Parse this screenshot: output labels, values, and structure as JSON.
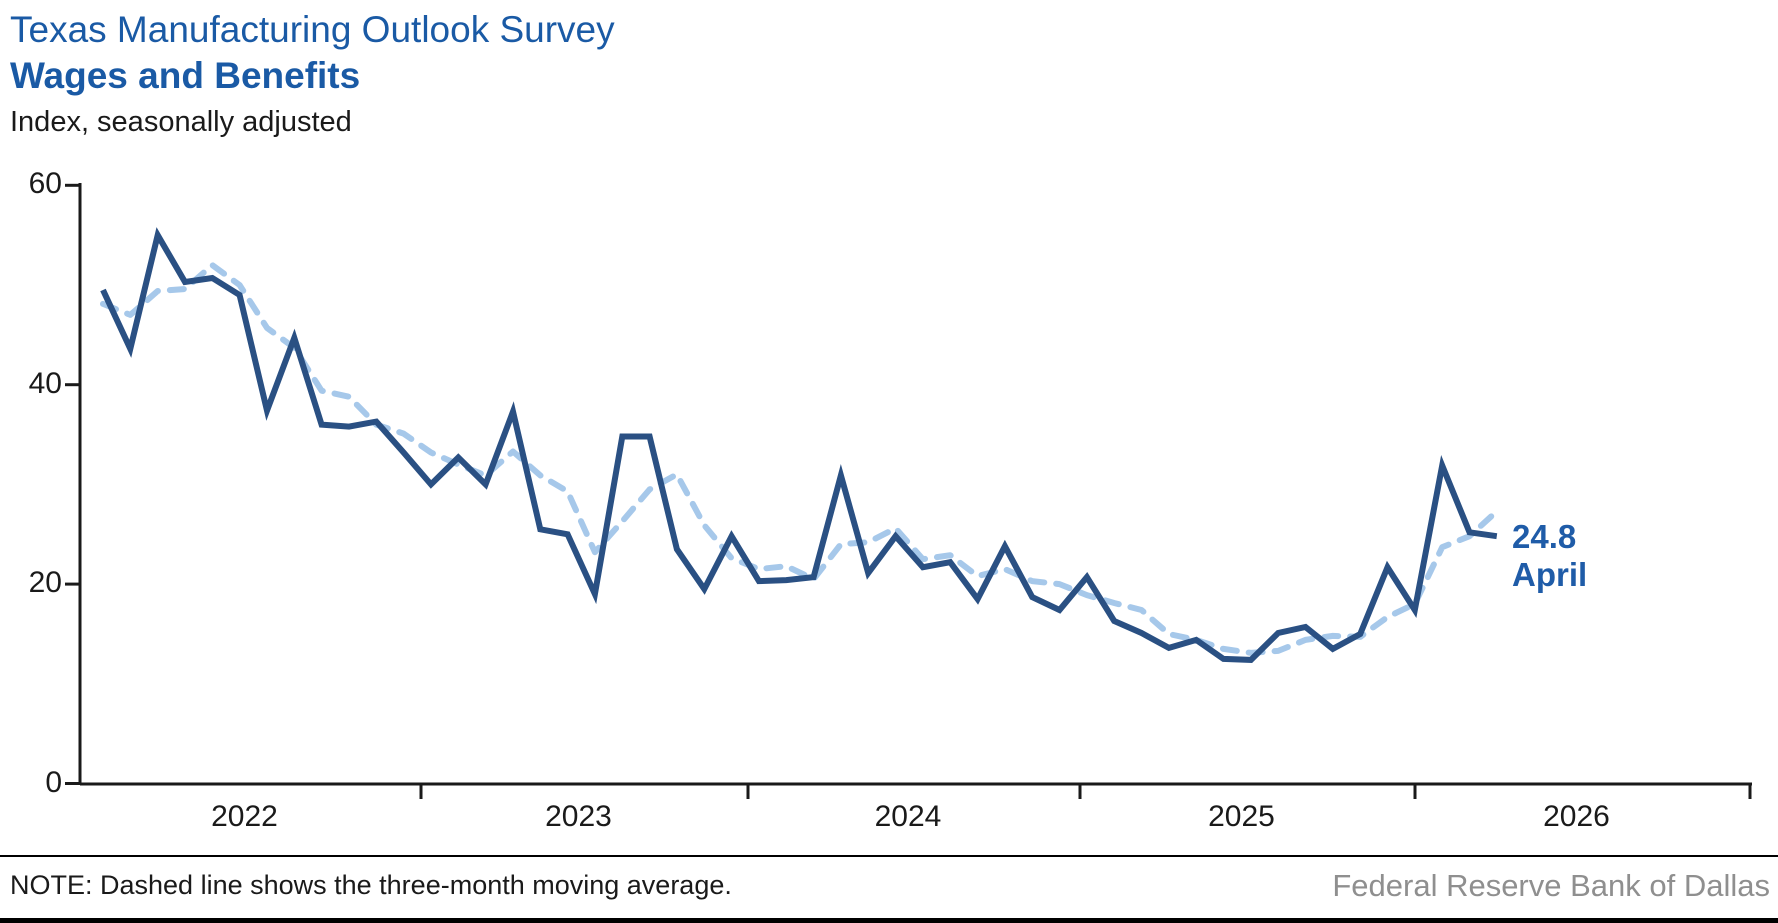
{
  "header": {
    "title": "Texas Manufacturing Outlook Survey",
    "subtitle": "Wages and Benefits",
    "axis_note": "Index, seasonally adjusted"
  },
  "annotation": {
    "value": "24.8",
    "month": "April"
  },
  "footer": {
    "note": "NOTE: Dashed line shows the three-month moving average.",
    "attribution": "Federal Reserve Bank of Dallas"
  },
  "colors": {
    "title_blue": "#1a5aa5",
    "annotation_blue": "#1f5ca8",
    "solid_line": "#2a5083",
    "dashed_line": "#a6c8ea",
    "axis": "#1a1a1a",
    "attribution_gray": "#8f8f8f"
  },
  "chart_data": {
    "type": "line",
    "title": "Texas Manufacturing Outlook Survey — Wages and Benefits",
    "ylabel": "Index, seasonally adjusted",
    "ylim": [
      0,
      60
    ],
    "y_ticks": [
      60,
      40,
      20,
      0
    ],
    "x_tick_labels": [
      "2022",
      "2023",
      "2024",
      "2025",
      "2026"
    ],
    "x_start": "2022-01",
    "x_end": "2026-04",
    "grid": false,
    "legend_position": "none",
    "last_point_label": "24.8 April",
    "series": [
      {
        "name": "Wages and benefits index",
        "style": "solid",
        "values": [
          49.5,
          43.6,
          55.0,
          50.3,
          50.7,
          49.0,
          37.4,
          44.7,
          36.0,
          35.8,
          36.3,
          33.2,
          30.0,
          32.7,
          30.0,
          37.3,
          25.5,
          25.0,
          19.0,
          34.8,
          34.8,
          23.5,
          19.5,
          24.8,
          20.3,
          20.4,
          20.7,
          30.9,
          21.1,
          24.8,
          21.7,
          22.2,
          18.5,
          23.8,
          18.7,
          17.4,
          20.7,
          16.3,
          15.1,
          13.6,
          14.4,
          12.5,
          12.4,
          15.1,
          15.7,
          13.5,
          15.0,
          21.7,
          17.4,
          31.9,
          25.2,
          24.8
        ]
      },
      {
        "name": "Three-month moving average",
        "style": "dashed",
        "values": [
          48.1,
          47.0,
          49.4,
          49.6,
          52.0,
          50.0,
          45.7,
          43.7,
          39.4,
          38.8,
          36.0,
          35.1,
          33.2,
          32.0,
          30.9,
          33.3,
          30.9,
          29.3,
          23.2,
          26.3,
          29.5,
          31.0,
          25.9,
          22.6,
          21.5,
          21.8,
          20.5,
          24.0,
          24.2,
          25.6,
          22.5,
          22.9,
          20.8,
          21.5,
          20.3,
          20.0,
          18.9,
          18.1,
          17.4,
          15.0,
          14.4,
          13.5,
          13.1,
          13.3,
          14.4,
          14.8,
          14.7,
          16.7,
          18.0,
          23.7,
          24.8,
          27.3
        ]
      }
    ]
  }
}
